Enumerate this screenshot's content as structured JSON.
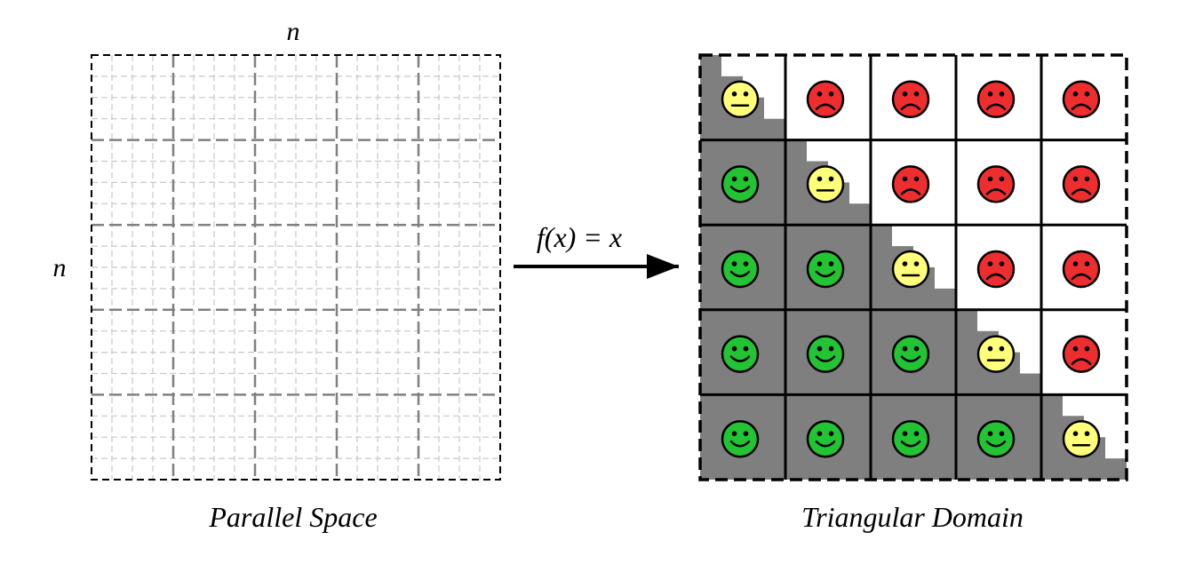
{
  "labels": {
    "n_top": "n",
    "n_left": "n",
    "function": "f(x) = x",
    "left_caption": "Parallel Space",
    "right_caption": "Triangular Domain"
  },
  "grid": {
    "blocks": 5,
    "subdivisions": 4
  },
  "colors": {
    "happy": "#22c433",
    "neutral": "#ffff7a",
    "sad": "#ee2e2e",
    "shade": "#7f7f7f",
    "major_grid": "#808080",
    "minor_grid": "#c8c8c8"
  },
  "face_legend": {
    "happy": "smile-face-icon",
    "neutral": "neutral-face-icon",
    "sad": "frown-face-icon"
  }
}
